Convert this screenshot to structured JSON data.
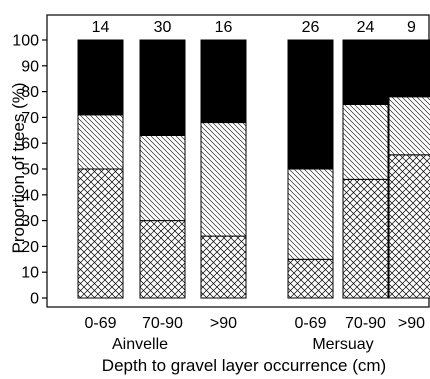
{
  "chart_data": {
    "type": "bar",
    "stacked": true,
    "percent": true,
    "ylabel": "Proportion of trees (%)",
    "xlabel": "Depth to gravel layer occurrence (cm)",
    "ylim": [
      0,
      100
    ],
    "yticks": [
      0,
      10,
      20,
      30,
      40,
      50,
      60,
      70,
      80,
      90,
      100
    ],
    "grid": false,
    "groups": [
      {
        "name": "Ainvelle",
        "bars": [
          {
            "category": "0-69",
            "n": "14",
            "segments": [
              50,
              21,
              29
            ]
          },
          {
            "category": "70-90",
            "n": "30",
            "segments": [
              30,
              33,
              37
            ]
          },
          {
            "category": ">90",
            "n": "16",
            "segments": [
              24,
              44,
              32
            ]
          }
        ]
      },
      {
        "name": "Mersuay",
        "bars": [
          {
            "category": "0-69",
            "n": "26",
            "segments": [
              15,
              35,
              50
            ]
          },
          {
            "category": "70-90",
            "n": "24",
            "segments": [
              46,
              29,
              25
            ]
          },
          {
            "category": ">90",
            "n": "9",
            "segments": [
              55.5,
              22.5,
              22
            ]
          }
        ]
      }
    ],
    "segment_styles": [
      "crosshatch",
      "diagonal-hatch",
      "solid-black"
    ],
    "colors": {
      "bar_fill": "#000000",
      "hatch": "#000000",
      "background": "#ffffff"
    }
  }
}
